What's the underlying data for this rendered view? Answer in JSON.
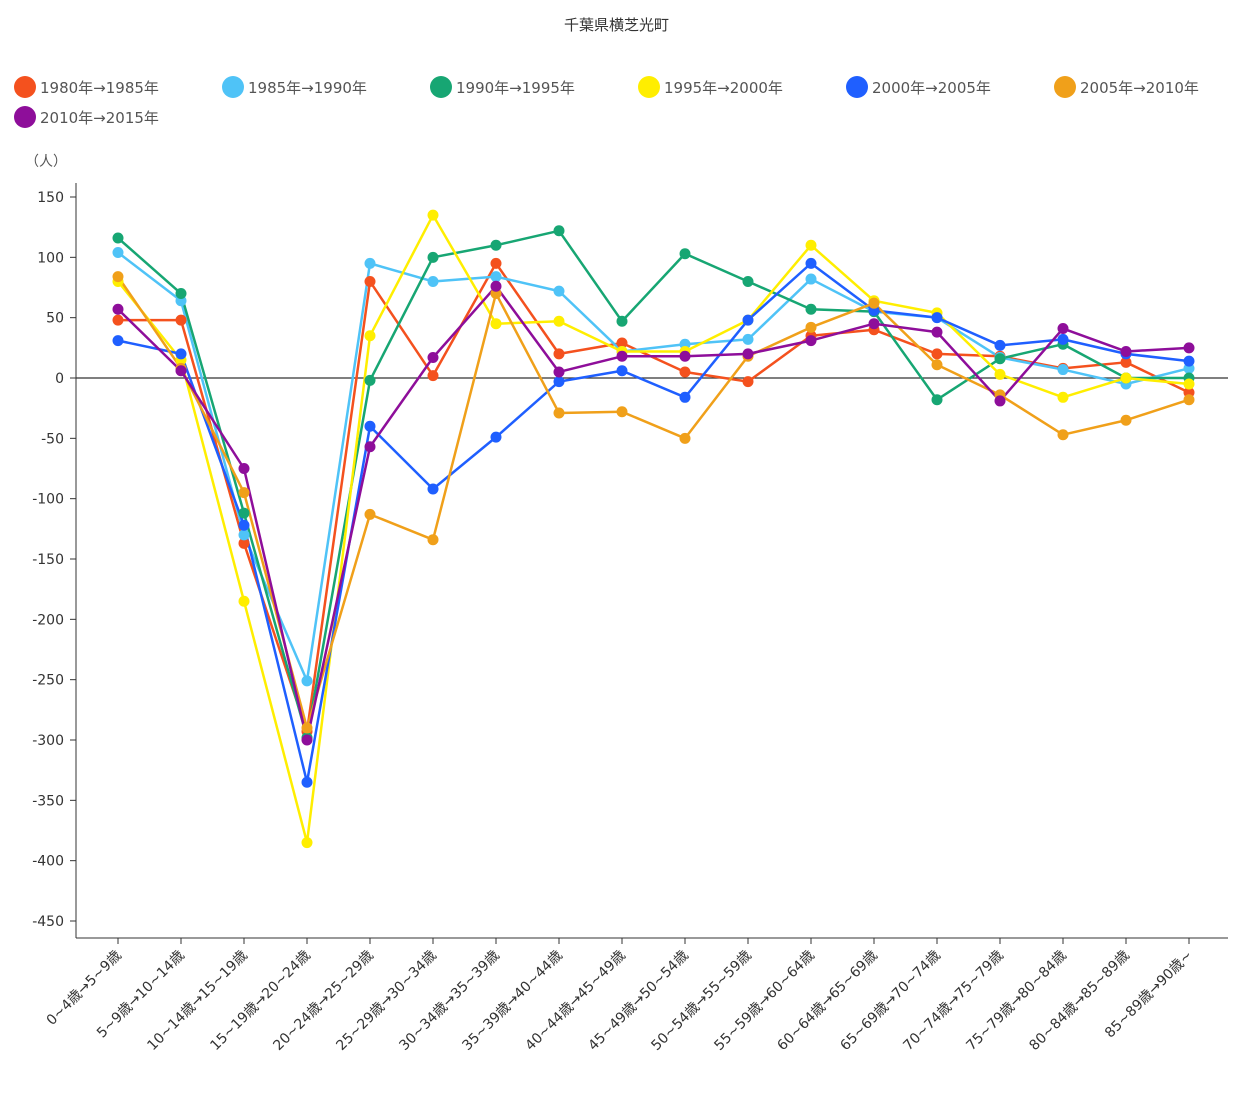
{
  "chart_data": {
    "type": "line",
    "title": "千葉県横芝光町",
    "ylabel": "（人）",
    "ylim": [
      -450,
      150
    ],
    "yticks": [
      150,
      100,
      50,
      0,
      -50,
      -100,
      -150,
      -200,
      -250,
      -300,
      -350,
      -400,
      -450
    ],
    "categories": [
      "0~4歳→5~9歳",
      "5~9歳→10~14歳",
      "10~14歳→15~19歳",
      "15~19歳→20~24歳",
      "20~24歳→25~29歳",
      "25~29歳→30~34歳",
      "30~34歳→35~39歳",
      "35~39歳→40~44歳",
      "40~44歳→45~49歳",
      "45~49歳→50~54歳",
      "50~54歳→55~59歳",
      "55~59歳→60~64歳",
      "60~64歳→65~69歳",
      "65~69歳→70~74歳",
      "70~74歳→75~79歳",
      "75~79歳→80~84歳",
      "80~84歳→85~89歳",
      "85~89歳→90歳~"
    ],
    "series": [
      {
        "name": "1980年→1985年",
        "color": "#f4511e",
        "values": [
          48,
          48,
          -137,
          -293,
          80,
          2,
          95,
          20,
          29,
          5,
          -3,
          35,
          40,
          20,
          18,
          8,
          13,
          -12
        ]
      },
      {
        "name": "1985年→1990年",
        "color": "#4fc3f7",
        "values": [
          104,
          64,
          -130,
          -251,
          95,
          80,
          84,
          72,
          22,
          28,
          32,
          82,
          55,
          50,
          17,
          7,
          -5,
          8
        ]
      },
      {
        "name": "1990年→1995年",
        "color": "#17a673",
        "values": [
          116,
          70,
          -112,
          -298,
          -2,
          100,
          110,
          122,
          47,
          103,
          80,
          57,
          55,
          -18,
          16,
          28,
          0,
          0
        ]
      },
      {
        "name": "1995年→2000年",
        "color": "#ffee00",
        "values": [
          80,
          15,
          -185,
          -385,
          35,
          135,
          45,
          47,
          22,
          22,
          48,
          110,
          64,
          54,
          3,
          -16,
          0,
          -5
        ]
      },
      {
        "name": "2000年→2005年",
        "color": "#1f5fff",
        "values": [
          31,
          20,
          -122,
          -335,
          -40,
          -92,
          -49,
          -3,
          6,
          -16,
          48,
          95,
          56,
          50,
          27,
          32,
          20,
          14
        ]
      },
      {
        "name": "2005年→2010年",
        "color": "#f0a01a",
        "values": [
          84,
          8,
          -95,
          -290,
          -113,
          -134,
          70,
          -29,
          -28,
          -50,
          18,
          42,
          62,
          11,
          -14,
          -47,
          -35,
          -18
        ]
      },
      {
        "name": "2010年→2015年",
        "color": "#8e0e9a",
        "values": [
          57,
          6,
          -75,
          -300,
          -57,
          17,
          76,
          5,
          18,
          18,
          20,
          31,
          45,
          38,
          -19,
          41,
          22,
          25
        ]
      }
    ]
  }
}
